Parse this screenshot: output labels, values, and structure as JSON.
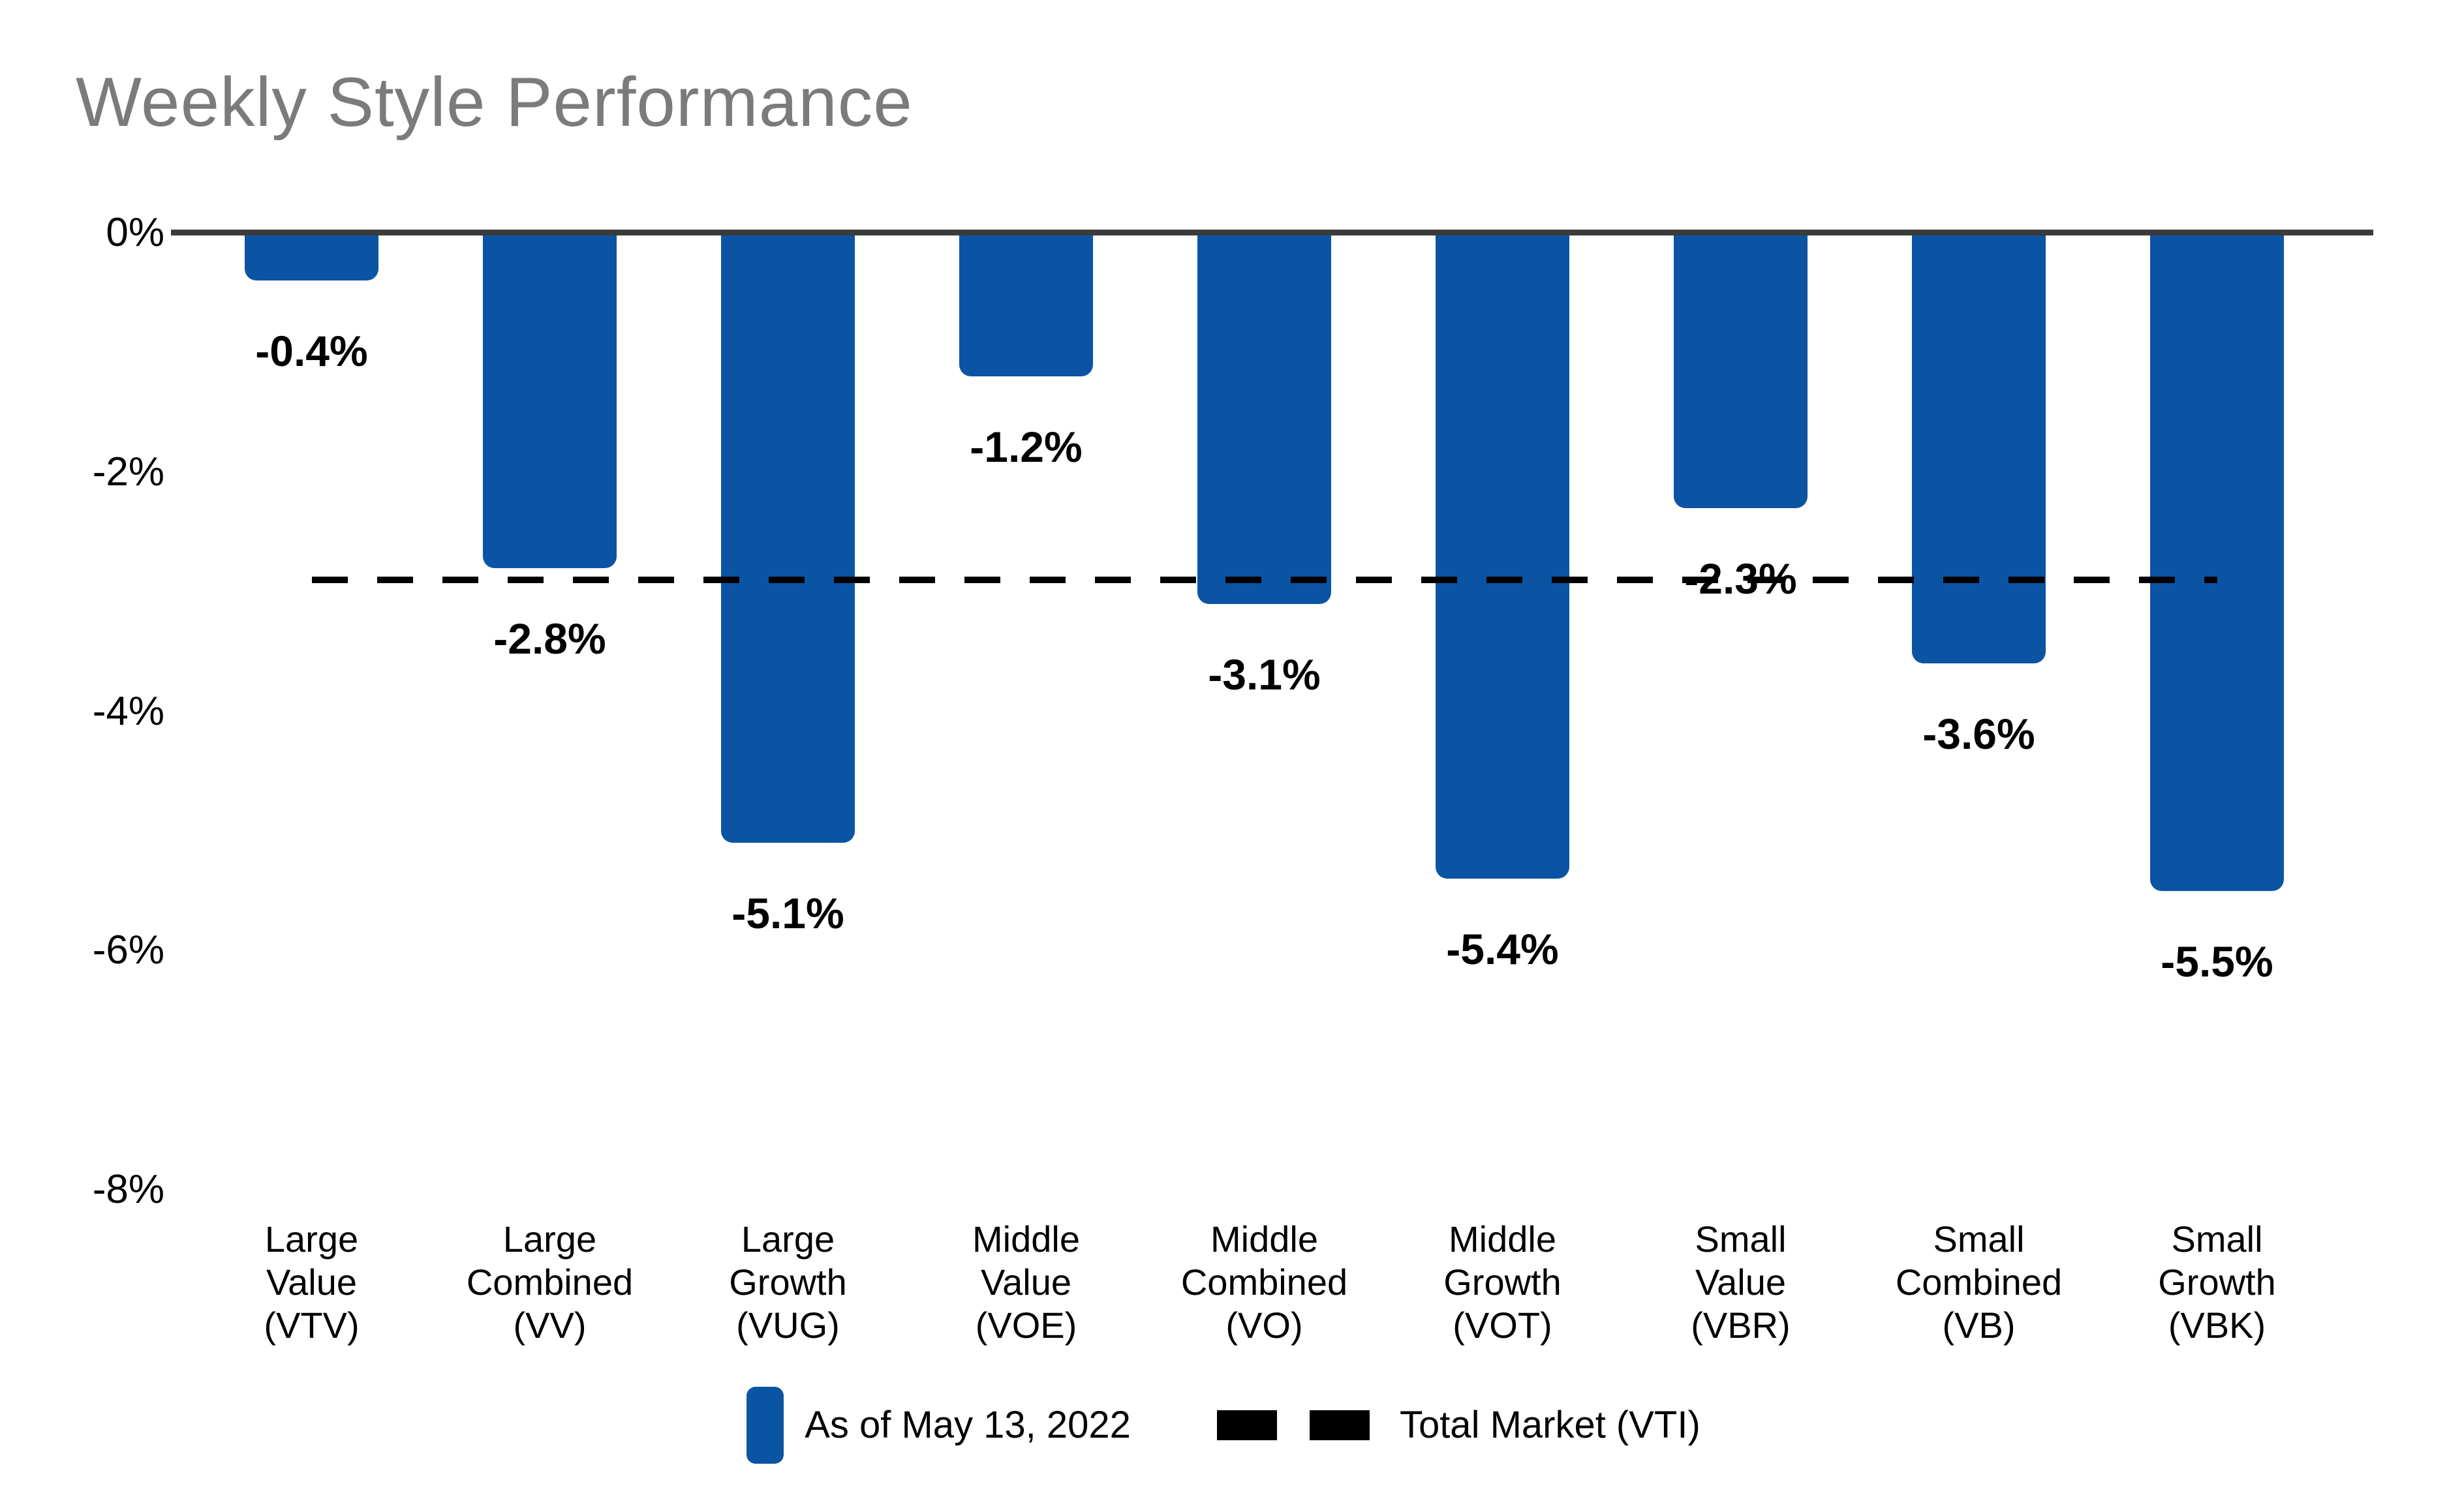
{
  "page": {
    "background": "#ffffff"
  },
  "chart_data": {
    "type": "bar",
    "title": "Weekly Style Performance",
    "categories": [
      "Large\nValue\n(VTV)",
      "Large\nCombined\n(VV)",
      "Large\nGrowth\n(VUG)",
      "Middle\nValue\n(VOE)",
      "Middle\nCombined\n(VO)",
      "Middle\nGrowth\n(VOT)",
      "Small\nValue\n(VBR)",
      "Small\nCombined\n(VB)",
      "Small\nGrowth\n(VBK)"
    ],
    "series": [
      {
        "name": "As of May 13, 2022",
        "values": [
          -0.4,
          -2.8,
          -5.1,
          -1.2,
          -3.1,
          -5.4,
          -2.3,
          -3.6,
          -5.5
        ],
        "labels": [
          "-0.4%",
          "-2.8%",
          "-5.1%",
          "-1.2%",
          "-3.1%",
          "-5.4%",
          "-2.3%",
          "-3.6%",
          "-5.5%"
        ],
        "color": "#0B54A3"
      }
    ],
    "reference_line": {
      "name": "Total Market (VTI)",
      "value": -2.9,
      "style": "dashed",
      "color": "#000000"
    },
    "y_axis": {
      "min": -8,
      "max": 0,
      "ticks": [
        {
          "value": 0,
          "label": "0%"
        },
        {
          "value": -2,
          "label": "-2%"
        },
        {
          "value": -4,
          "label": "-4%"
        },
        {
          "value": -6,
          "label": "-6%"
        },
        {
          "value": -8,
          "label": "-8%"
        }
      ]
    },
    "grid": false,
    "legend": {
      "position": "bottom",
      "items": [
        {
          "label": "As of May 13, 2022",
          "swatch": "bar"
        },
        {
          "label": "Total Market (VTI)",
          "swatch": "dashes"
        }
      ]
    }
  },
  "style": {
    "bar_color": "#0B54A3",
    "axis_color": "#3B3B3B",
    "title_color": "#7B7B7B",
    "text_color": "#000000",
    "dash_color": "#000000"
  }
}
